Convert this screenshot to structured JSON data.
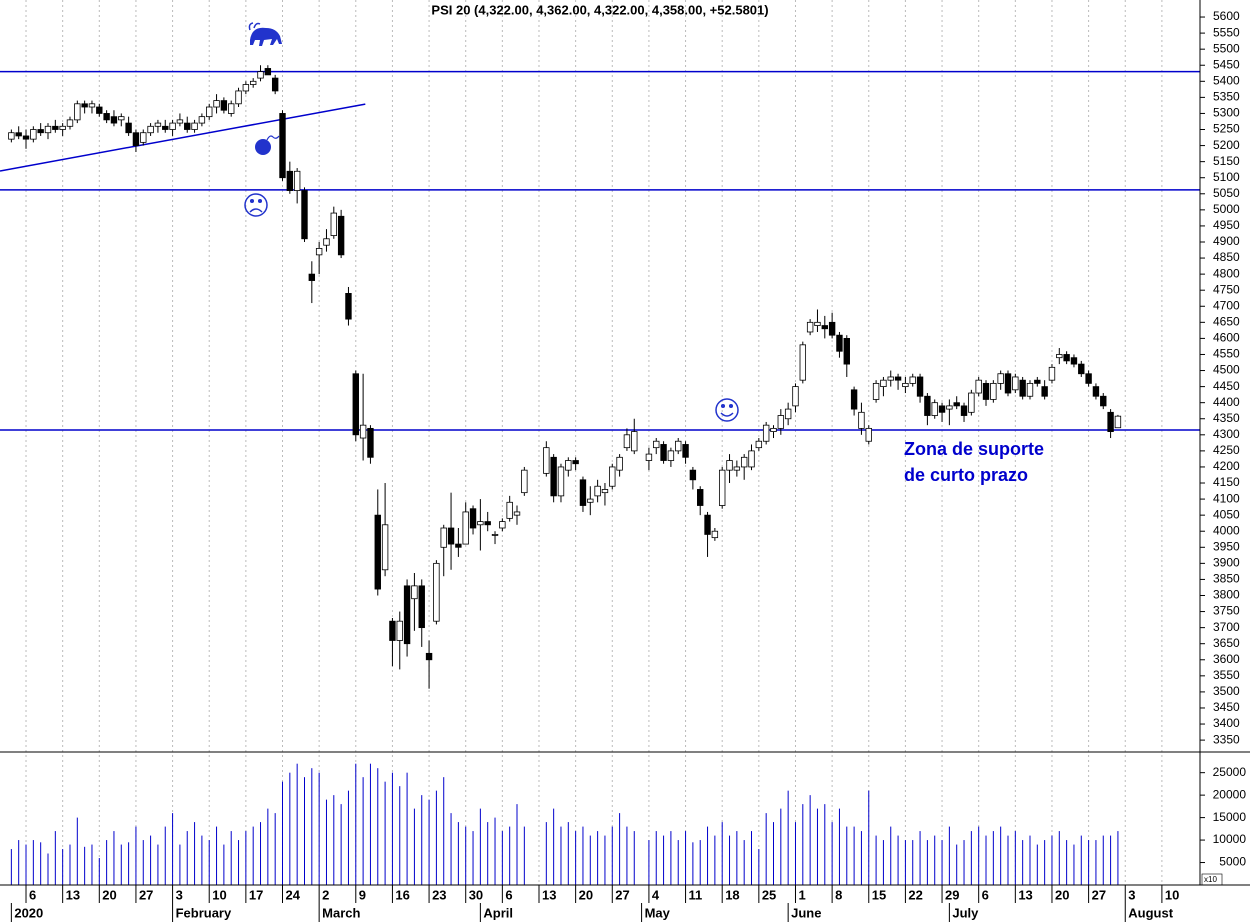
{
  "chart_data": {
    "type": "candlestick",
    "title": "PSI 20 (4,322.00, 4,362.00, 4,322.00, 4,358.00, +52.5801)",
    "x": [
      -2,
      -1,
      0,
      1,
      2,
      3,
      4,
      5,
      6,
      7,
      8,
      9,
      10,
      11,
      12,
      13,
      14,
      15,
      16,
      17,
      18,
      19,
      20,
      21,
      22,
      23,
      24,
      25,
      26,
      27,
      28,
      29,
      30,
      31,
      32,
      33,
      34,
      35,
      36,
      37,
      38,
      39,
      40,
      41,
      42,
      43,
      44,
      45,
      46,
      47,
      48,
      49,
      50,
      51,
      52,
      53,
      54,
      55,
      56,
      57,
      58,
      59,
      60,
      61,
      62,
      63,
      64,
      65,
      66,
      67,
      68,
      71,
      72,
      73,
      74,
      75,
      76,
      77,
      78,
      79,
      80,
      81,
      82,
      83,
      85,
      86,
      87,
      88,
      89,
      90,
      91,
      92,
      93,
      94,
      95,
      96,
      97,
      98,
      99,
      100,
      101,
      102,
      103,
      104,
      105,
      106,
      107,
      108,
      109,
      110,
      111,
      112,
      113,
      114,
      115,
      116,
      117,
      118,
      119,
      120,
      121,
      122,
      123,
      124,
      125,
      126,
      127,
      128,
      129,
      130,
      131,
      132,
      133,
      134,
      135,
      136,
      137,
      138,
      139,
      140,
      141,
      142,
      143,
      144,
      145,
      146,
      147,
      148,
      149
    ],
    "open": [
      5220,
      5240,
      5230,
      5220,
      5250,
      5240,
      5260,
      5250,
      5260,
      5280,
      5330,
      5320,
      5320,
      5300,
      5290,
      5280,
      5270,
      5240,
      5210,
      5240,
      5260,
      5260,
      5250,
      5270,
      5270,
      5250,
      5270,
      5290,
      5320,
      5340,
      5300,
      5330,
      5370,
      5390,
      5410,
      5440,
      5410,
      5300,
      5120,
      5060,
      5060,
      4800,
      4860,
      4890,
      4920,
      4980,
      4740,
      4490,
      4290,
      4320,
      4050,
      3880,
      3720,
      3660,
      3830,
      3790,
      3830,
      3620,
      3720,
      3950,
      4010,
      3960,
      3960,
      4070,
      4020,
      4030,
      3990,
      4010,
      4040,
      4050,
      4120,
      4180,
      4230,
      4110,
      4190,
      4220,
      4160,
      4090,
      4110,
      4120,
      4140,
      4190,
      4260,
      4250,
      4220,
      4260,
      4270,
      4220,
      4250,
      4270,
      4190,
      4130,
      4050,
      3980,
      4080,
      4190,
      4190,
      4200,
      4200,
      4260,
      4280,
      4310,
      4320,
      4350,
      4390,
      4470,
      4620,
      4640,
      4640,
      4650,
      4610,
      4600,
      4440,
      4320,
      4280,
      4410,
      4450,
      4470,
      4480,
      4450,
      4460,
      4480,
      4420,
      4360,
      4390,
      4380,
      4400,
      4390,
      4370,
      4430,
      4460,
      4410,
      4460,
      4490,
      4440,
      4470,
      4420,
      4470,
      4450,
      4470,
      4540,
      4550,
      4540,
      4520,
      4490,
      4450,
      4420,
      4370,
      4322
    ],
    "high": [
      5250,
      5260,
      5250,
      5260,
      5270,
      5270,
      5280,
      5270,
      5290,
      5340,
      5340,
      5340,
      5330,
      5310,
      5310,
      5300,
      5290,
      5250,
      5250,
      5270,
      5280,
      5280,
      5280,
      5300,
      5290,
      5280,
      5300,
      5330,
      5360,
      5350,
      5340,
      5380,
      5400,
      5410,
      5450,
      5450,
      5420,
      5310,
      5150,
      5130,
      5070,
      4840,
      4900,
      4940,
      5010,
      5000,
      4760,
      4500,
      4490,
      4330,
      4130,
      4150,
      3730,
      3750,
      3850,
      3870,
      3850,
      3660,
      3910,
      4020,
      4120,
      4010,
      4090,
      4080,
      4100,
      4060,
      4000,
      4040,
      4110,
      4080,
      4200,
      4280,
      4240,
      4210,
      4230,
      4230,
      4170,
      4140,
      4160,
      4150,
      4210,
      4240,
      4320,
      4350,
      4260,
      4290,
      4280,
      4260,
      4290,
      4280,
      4200,
      4140,
      4060,
      4010,
      4200,
      4240,
      4220,
      4240,
      4270,
      4290,
      4340,
      4330,
      4380,
      4400,
      4460,
      4590,
      4660,
      4690,
      4670,
      4680,
      4620,
      4610,
      4450,
      4400,
      4330,
      4470,
      4480,
      4500,
      4490,
      4480,
      4490,
      4490,
      4430,
      4410,
      4400,
      4410,
      4420,
      4400,
      4440,
      4480,
      4470,
      4470,
      4500,
      4500,
      4490,
      4480,
      4470,
      4480,
      4470,
      4520,
      4570,
      4560,
      4550,
      4530,
      4500,
      4460,
      4430,
      4380,
      4362
    ],
    "low": [
      5210,
      5220,
      5190,
      5210,
      5230,
      5220,
      5240,
      5230,
      5250,
      5270,
      5300,
      5300,
      5290,
      5270,
      5260,
      5260,
      5230,
      5180,
      5200,
      5230,
      5240,
      5240,
      5230,
      5260,
      5240,
      5240,
      5260,
      5280,
      5300,
      5300,
      5290,
      5320,
      5360,
      5380,
      5400,
      5420,
      5360,
      5090,
      5050,
      5020,
      4900,
      4710,
      4800,
      4870,
      4910,
      4850,
      4640,
      4280,
      4220,
      4210,
      3800,
      3860,
      3580,
      3570,
      3610,
      3690,
      3640,
      3510,
      3710,
      3860,
      3880,
      3920,
      3960,
      3990,
      3940,
      4000,
      3960,
      4000,
      4030,
      4020,
      4110,
      4170,
      4090,
      4090,
      4170,
      4190,
      4060,
      4050,
      4090,
      4080,
      4130,
      4170,
      4250,
      4240,
      4190,
      4240,
      4210,
      4200,
      4240,
      4210,
      4130,
      4050,
      3920,
      3970,
      4070,
      4150,
      4170,
      4160,
      4190,
      4250,
      4270,
      4290,
      4300,
      4330,
      4370,
      4460,
      4610,
      4620,
      4600,
      4600,
      4540,
      4480,
      4360,
      4300,
      4270,
      4400,
      4420,
      4450,
      4440,
      4430,
      4450,
      4400,
      4330,
      4350,
      4340,
      4330,
      4380,
      4340,
      4360,
      4420,
      4390,
      4400,
      4440,
      4420,
      4430,
      4410,
      4410,
      4450,
      4410,
      4460,
      4520,
      4520,
      4510,
      4480,
      4450,
      4410,
      4380,
      4290,
      4322
    ],
    "close": [
      5240,
      5230,
      5220,
      5250,
      5240,
      5260,
      5250,
      5260,
      5280,
      5330,
      5320,
      5330,
      5300,
      5280,
      5270,
      5290,
      5240,
      5200,
      5240,
      5260,
      5270,
      5250,
      5270,
      5280,
      5250,
      5270,
      5290,
      5320,
      5340,
      5310,
      5330,
      5370,
      5390,
      5400,
      5430,
      5420,
      5370,
      5100,
      5060,
      5120,
      4910,
      4780,
      4880,
      4910,
      4990,
      4860,
      4660,
      4300,
      4330,
      4230,
      3820,
      4020,
      3660,
      3720,
      3650,
      3830,
      3700,
      3600,
      3900,
      4010,
      3960,
      3950,
      4060,
      4010,
      4030,
      4020,
      3990,
      4030,
      4090,
      4060,
      4190,
      4260,
      4110,
      4200,
      4220,
      4210,
      4080,
      4100,
      4140,
      4130,
      4200,
      4230,
      4300,
      4310,
      4240,
      4280,
      4220,
      4250,
      4280,
      4230,
      4160,
      4080,
      3990,
      4000,
      4190,
      4220,
      4200,
      4230,
      4250,
      4280,
      4330,
      4320,
      4360,
      4380,
      4450,
      4580,
      4650,
      4650,
      4630,
      4610,
      4560,
      4520,
      4380,
      4370,
      4320,
      4460,
      4470,
      4480,
      4470,
      4460,
      4480,
      4420,
      4360,
      4400,
      4370,
      4390,
      4390,
      4360,
      4430,
      4470,
      4410,
      4460,
      4490,
      4430,
      4480,
      4420,
      4460,
      4460,
      4420,
      4510,
      4550,
      4530,
      4520,
      4490,
      4460,
      4420,
      4390,
      4310,
      4358
    ],
    "volume": [
      8000,
      10000,
      9000,
      10000,
      9500,
      7000,
      12000,
      8000,
      9000,
      15000,
      8500,
      9000,
      6000,
      10000,
      12000,
      9000,
      9500,
      13000,
      10000,
      11000,
      9000,
      13000,
      16000,
      9000,
      12000,
      14000,
      11000,
      10000,
      13000,
      9000,
      12000,
      10000,
      12000,
      13000,
      14000,
      17000,
      16000,
      23000,
      25000,
      27000,
      24000,
      26000,
      25000,
      19000,
      20000,
      18000,
      21000,
      27000,
      24000,
      27000,
      26000,
      23000,
      25000,
      22000,
      25000,
      17000,
      20000,
      19000,
      21000,
      24000,
      16000,
      14000,
      13000,
      12000,
      17000,
      14000,
      15000,
      12000,
      13000,
      18000,
      13000,
      14000,
      17000,
      13000,
      14000,
      12000,
      13000,
      11000,
      12000,
      11000,
      13000,
      16000,
      13000,
      12000,
      10000,
      12000,
      11000,
      12000,
      10000,
      12000,
      9500,
      10000,
      13000,
      11000,
      14000,
      11000,
      12000,
      10000,
      12000,
      8000,
      16000,
      14000,
      17000,
      21000,
      14000,
      18000,
      20000,
      17000,
      18000,
      14000,
      17000,
      13000,
      13000,
      12000,
      21000,
      11000,
      10000,
      13000,
      11000,
      10000,
      10000,
      12000,
      10000,
      11000,
      10000,
      13000,
      9000,
      10000,
      12000,
      13000,
      11000,
      12000,
      13000,
      11000,
      12000,
      10000,
      11000,
      9000,
      10000,
      11000,
      12000,
      10000,
      9000,
      11000,
      10000,
      10000,
      11000,
      11000,
      12000
    ],
    "up_color": "#ffffff",
    "down_color": "#000000",
    "volume_color": "#0000cc",
    "line_color": "#0000cc",
    "xlim": [
      -3.55,
      160.2
    ],
    "xticks": [
      {
        "value": 0,
        "label": "6"
      },
      {
        "value": 5,
        "label": "13"
      },
      {
        "value": 10,
        "label": "20"
      },
      {
        "value": 15,
        "label": "27"
      },
      {
        "value": 20,
        "label": "3"
      },
      {
        "value": 25,
        "label": "10"
      },
      {
        "value": 30,
        "label": "17"
      },
      {
        "value": 35,
        "label": "24"
      },
      {
        "value": 40,
        "label": "2"
      },
      {
        "value": 45,
        "label": "9"
      },
      {
        "value": 50,
        "label": "16"
      },
      {
        "value": 55,
        "label": "23"
      },
      {
        "value": 60,
        "label": "30"
      },
      {
        "value": 65,
        "label": "6"
      },
      {
        "value": 70,
        "label": "13"
      },
      {
        "value": 75,
        "label": "20"
      },
      {
        "value": 80,
        "label": "27"
      },
      {
        "value": 85,
        "label": "4"
      },
      {
        "value": 90,
        "label": "11"
      },
      {
        "value": 95,
        "label": "18"
      },
      {
        "value": 100,
        "label": "25"
      },
      {
        "value": 105,
        "label": "1"
      },
      {
        "value": 110,
        "label": "8"
      },
      {
        "value": 115,
        "label": "15"
      },
      {
        "value": 120,
        "label": "22"
      },
      {
        "value": 125,
        "label": "29"
      },
      {
        "value": 130,
        "label": "6"
      },
      {
        "value": 135,
        "label": "13"
      },
      {
        "value": 140,
        "label": "20"
      },
      {
        "value": 145,
        "label": "27"
      },
      {
        "value": 150,
        "label": "3"
      },
      {
        "value": 155,
        "label": "10"
      }
    ],
    "month_ticks": [
      {
        "value": -2,
        "label": "2020"
      },
      {
        "value": 20,
        "label": "February"
      },
      {
        "value": 40,
        "label": "March"
      },
      {
        "value": 62,
        "label": "April"
      },
      {
        "value": 84,
        "label": "May"
      },
      {
        "value": 104,
        "label": "June"
      },
      {
        "value": 126,
        "label": "July"
      },
      {
        "value": 150,
        "label": "August"
      }
    ],
    "ylim": [
      3313,
      5653
    ],
    "yticks": [
      3350,
      3400,
      3450,
      3500,
      3550,
      3600,
      3650,
      3700,
      3750,
      3800,
      3850,
      3900,
      3950,
      4000,
      4050,
      4100,
      4150,
      4200,
      4250,
      4300,
      4350,
      4400,
      4450,
      4500,
      4550,
      4600,
      4650,
      4700,
      4750,
      4800,
      4850,
      4900,
      4950,
      5000,
      5050,
      5100,
      5150,
      5200,
      5250,
      5300,
      5350,
      5400,
      5450,
      5500,
      5550,
      5600
    ],
    "volume_lim": [
      0,
      29600
    ],
    "volume_ticks": [
      5000,
      10000,
      15000,
      20000,
      25000
    ],
    "volume_unit": "x10",
    "hlines": [
      5430,
      5062,
      4315
    ],
    "trendline": {
      "x": [
        -3.55,
        46.3
      ],
      "y": [
        5121,
        5329
      ]
    },
    "annotations": [
      "Zona de suporte",
      "de curto prazo"
    ],
    "grid": true
  }
}
